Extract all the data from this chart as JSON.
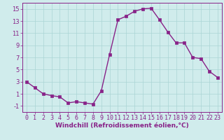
{
  "x": [
    0,
    1,
    2,
    3,
    4,
    5,
    6,
    7,
    8,
    9,
    10,
    11,
    12,
    13,
    14,
    15,
    16,
    17,
    18,
    19,
    20,
    21,
    22,
    23
  ],
  "y": [
    3,
    2,
    1,
    0.7,
    0.5,
    -0.5,
    -0.3,
    -0.5,
    -0.7,
    1.5,
    7.5,
    13.2,
    13.8,
    14.6,
    15.0,
    15.1,
    13.2,
    11.2,
    9.4,
    9.4,
    7.0,
    6.8,
    4.7,
    3.7
  ],
  "line_color": "#882288",
  "marker": "s",
  "markersize": 2.2,
  "linewidth": 1.0,
  "bg_color": "#d0ecec",
  "grid_color": "#aad4d4",
  "xlabel": "Windchill (Refroidissement éolien,°C)",
  "xlabel_fontsize": 6.5,
  "tick_fontsize": 6,
  "xlim": [
    -0.5,
    23.5
  ],
  "ylim": [
    -2,
    16
  ],
  "yticks": [
    -1,
    1,
    3,
    5,
    7,
    9,
    11,
    13,
    15
  ],
  "xticks": [
    0,
    1,
    2,
    3,
    4,
    5,
    6,
    7,
    8,
    9,
    10,
    11,
    12,
    13,
    14,
    15,
    16,
    17,
    18,
    19,
    20,
    21,
    22,
    23
  ]
}
